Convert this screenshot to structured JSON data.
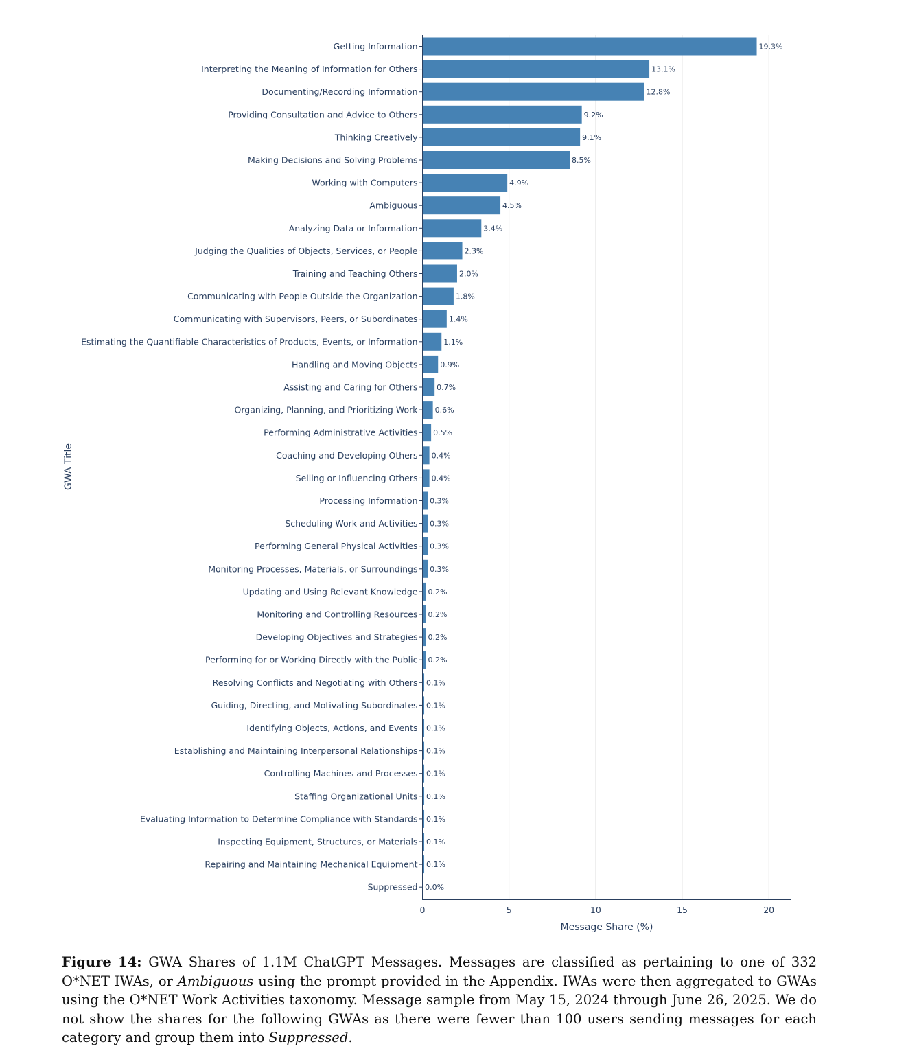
{
  "chart_data": {
    "type": "bar",
    "orientation": "horizontal",
    "xlabel": "Message Share (%)",
    "ylabel": "GWA Title",
    "xlim": [
      0,
      21.3
    ],
    "xticks": [
      0,
      5,
      10,
      15,
      20
    ],
    "grid": "vertical",
    "bar_color": "#4682b4",
    "categories": [
      "Getting Information",
      "Interpreting the Meaning of Information for Others",
      "Documenting/Recording Information",
      "Providing Consultation and Advice to Others",
      "Thinking Creatively",
      "Making Decisions and Solving Problems",
      "Working with Computers",
      "Ambiguous",
      "Analyzing Data or Information",
      "Judging the Qualities of Objects, Services, or People",
      "Training and Teaching Others",
      "Communicating with People Outside the Organization",
      "Communicating with Supervisors, Peers, or Subordinates",
      "Estimating the Quantifiable Characteristics of Products, Events, or Information",
      "Handling and Moving Objects",
      "Assisting and Caring for Others",
      "Organizing, Planning, and Prioritizing Work",
      "Performing Administrative Activities",
      "Coaching and Developing Others",
      "Selling or Influencing Others",
      "Processing Information",
      "Scheduling Work and Activities",
      "Performing General Physical Activities",
      "Monitoring Processes, Materials, or Surroundings",
      "Updating and Using Relevant Knowledge",
      "Monitoring and Controlling Resources",
      "Developing Objectives and Strategies",
      "Performing for or Working Directly with the Public",
      "Resolving Conflicts and Negotiating with Others",
      "Guiding, Directing, and Motivating Subordinates",
      "Identifying Objects, Actions, and Events",
      "Establishing and Maintaining Interpersonal Relationships",
      "Controlling Machines and Processes",
      "Staffing Organizational Units",
      "Evaluating Information to Determine Compliance with Standards",
      "Inspecting Equipment, Structures, or Materials",
      "Repairing and Maintaining Mechanical Equipment",
      "Suppressed"
    ],
    "values": [
      19.3,
      13.1,
      12.8,
      9.2,
      9.1,
      8.5,
      4.9,
      4.5,
      3.4,
      2.3,
      2.0,
      1.8,
      1.4,
      1.1,
      0.9,
      0.7,
      0.6,
      0.5,
      0.4,
      0.4,
      0.3,
      0.3,
      0.3,
      0.3,
      0.2,
      0.2,
      0.2,
      0.2,
      0.1,
      0.1,
      0.1,
      0.1,
      0.1,
      0.1,
      0.1,
      0.1,
      0.1,
      0.0
    ],
    "value_labels": [
      "19.3%",
      "13.1%",
      "12.8%",
      "9.2%",
      "9.1%",
      "8.5%",
      "4.9%",
      "4.5%",
      "3.4%",
      "2.3%",
      "2.0%",
      "1.8%",
      "1.4%",
      "1.1%",
      "0.9%",
      "0.7%",
      "0.6%",
      "0.5%",
      "0.4%",
      "0.4%",
      "0.3%",
      "0.3%",
      "0.3%",
      "0.3%",
      "0.2%",
      "0.2%",
      "0.2%",
      "0.2%",
      "0.1%",
      "0.1%",
      "0.1%",
      "0.1%",
      "0.1%",
      "0.1%",
      "0.1%",
      "0.1%",
      "0.1%",
      "0.0%"
    ]
  },
  "caption": {
    "figure_label": "Figure 14:",
    "part1": " GWA Shares of 1.1M ChatGPT Messages. Messages are classified as pertaining to one of 332 O*NET IWAs, or ",
    "ambiguous_word": "Ambiguous",
    "part2": " using the prompt provided in the Appendix. IWAs were then aggregated to GWAs using the O*NET Work Activities taxonomy. Message sample from May 15, 2024 through June 26, 2025. We do not show the shares for the following GWAs as there were fewer than 100 users sending messages for each category and group them into ",
    "suppressed_word": "Suppressed",
    "part3": "."
  }
}
